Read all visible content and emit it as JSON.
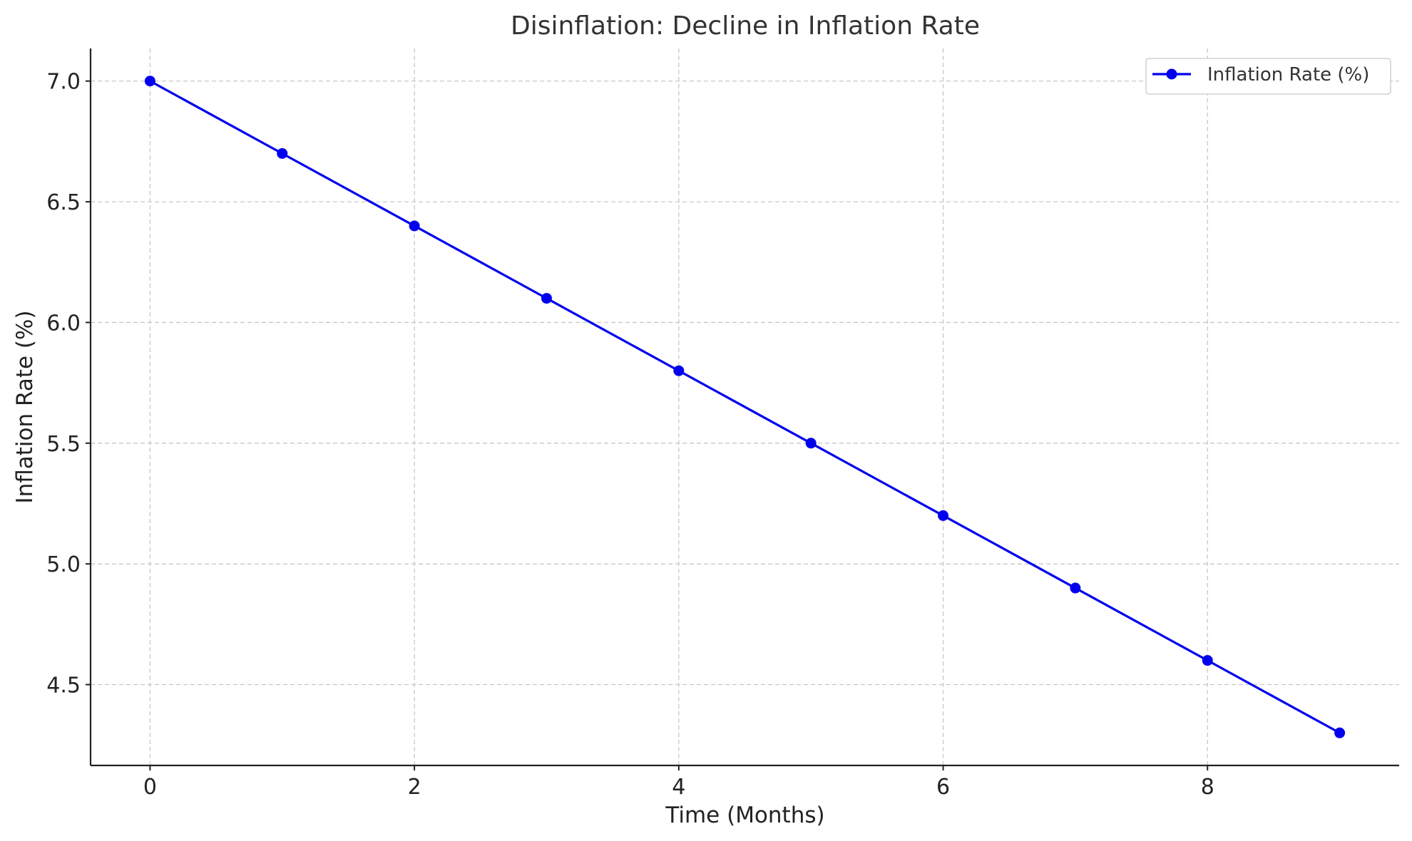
{
  "chart_data": {
    "type": "line",
    "title": "Disinflation: Decline in Inflation Rate",
    "xlabel": "Time (Months)",
    "ylabel": "Inflation Rate (%)",
    "x": [
      0,
      1,
      2,
      3,
      4,
      5,
      6,
      7,
      8,
      9
    ],
    "series": [
      {
        "name": "Inflation Rate (%)",
        "values": [
          7.0,
          6.7,
          6.4,
          6.1,
          5.8,
          5.5,
          5.2,
          4.9,
          4.6,
          4.3
        ],
        "color": "#0000ee",
        "marker": "circle"
      }
    ],
    "xlim": [
      -0.45,
      9.45
    ],
    "ylim": [
      4.165,
      7.135
    ],
    "x_ticks": [
      "0",
      "2",
      "4",
      "6",
      "8"
    ],
    "y_ticks": [
      "4.5",
      "5.0",
      "5.5",
      "6.0",
      "6.5",
      "7.0"
    ],
    "grid": true,
    "legend_position": "top-right"
  }
}
